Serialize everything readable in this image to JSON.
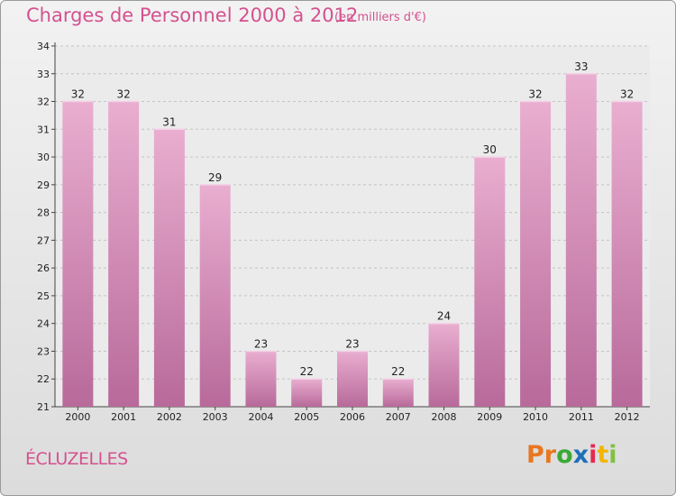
{
  "header": {
    "title": "Charges de Personnel 2000 à 2012",
    "subtitle": "(en milliers d'€)"
  },
  "footer": {
    "place": "ÉCLUZELLES",
    "logo_letters": [
      "P",
      "r",
      "o",
      "x",
      "i",
      "t",
      "i"
    ],
    "logo_colors": [
      "#e87722",
      "#e87722",
      "#3aaa35",
      "#1d6fb8",
      "#e52b50",
      "#f2b600",
      "#7fc241"
    ]
  },
  "colors": {
    "bar_top": "#e9aed0",
    "bar_bottom": "#b86a9a",
    "accent": "#d4518f"
  },
  "chart_data": {
    "type": "bar",
    "title": "Charges de Personnel 2000 à 2012",
    "subtitle": "(en milliers d'€)",
    "categories": [
      "2000",
      "2001",
      "2002",
      "2003",
      "2004",
      "2005",
      "2006",
      "2007",
      "2008",
      "2009",
      "2010",
      "2011",
      "2012"
    ],
    "values": [
      32,
      32,
      31,
      29,
      23,
      22,
      23,
      22,
      24,
      30,
      32,
      33,
      32
    ],
    "ylim": [
      21,
      34
    ],
    "yticks": [
      21,
      22,
      23,
      24,
      25,
      26,
      27,
      28,
      29,
      30,
      31,
      32,
      33,
      34
    ],
    "grid": true,
    "xlabel": "",
    "ylabel": ""
  }
}
